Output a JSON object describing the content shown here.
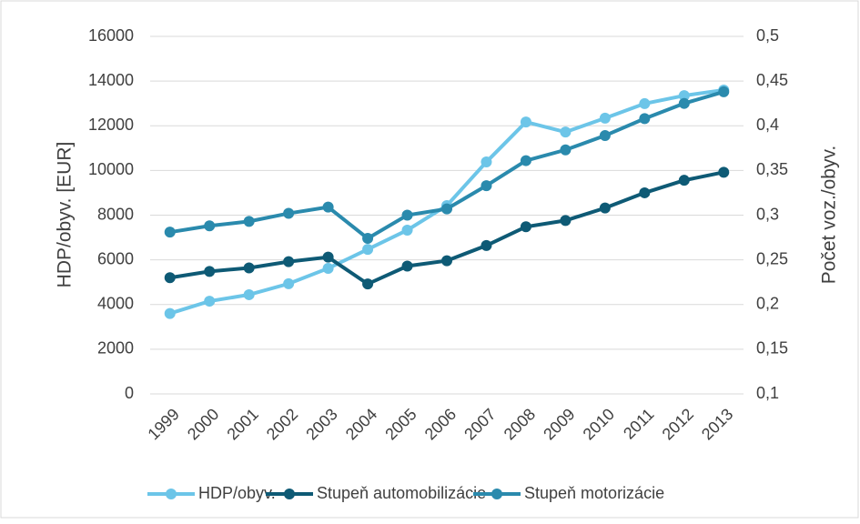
{
  "chart_data": {
    "type": "line",
    "categories": [
      "1999",
      "2000",
      "2001",
      "2002",
      "2003",
      "2004",
      "2005",
      "2006",
      "2007",
      "2008",
      "2009",
      "2010",
      "2011",
      "2012",
      "2013"
    ],
    "ylabel": "HDP/obyv. [EUR]",
    "y2label": "Počet voz./obyv.",
    "ylim": [
      0,
      16000
    ],
    "yticks": [
      0,
      2000,
      4000,
      6000,
      8000,
      10000,
      12000,
      14000,
      16000
    ],
    "y2lim": [
      0.1,
      0.5
    ],
    "y2ticks": [
      {
        "value": 0.1,
        "label": "0,1"
      },
      {
        "value": 0.15,
        "label": "0,15"
      },
      {
        "value": 0.2,
        "label": "0,2"
      },
      {
        "value": 0.25,
        "label": "0,25"
      },
      {
        "value": 0.3,
        "label": "0,3"
      },
      {
        "value": 0.35,
        "label": "0,35"
      },
      {
        "value": 0.4,
        "label": "0,4"
      },
      {
        "value": 0.45,
        "label": "0,45"
      },
      {
        "value": 0.5,
        "label": "0,5"
      }
    ],
    "grid": true,
    "legend": "bottom",
    "series": [
      {
        "name": "HDP/obyv.",
        "color": "#6cc5e8",
        "values": [
          3600,
          4150,
          4440,
          4930,
          5620,
          6470,
          7330,
          8430,
          10380,
          12170,
          11720,
          12340,
          12990,
          13350,
          13600
        ]
      },
      {
        "name": "Stupeň automobilizácie",
        "color": "#0e5a75",
        "axis": "y2",
        "values": [
          0.23,
          0.237,
          0.241,
          0.248,
          0.253,
          0.223,
          0.243,
          0.249,
          0.266,
          0.287,
          0.294,
          0.308,
          0.325,
          0.339,
          0.348
        ]
      },
      {
        "name": "Stupeň motorizácie",
        "color": "#2a8aad",
        "axis": "y2",
        "values": [
          0.281,
          0.288,
          0.293,
          0.302,
          0.309,
          0.274,
          0.3,
          0.307,
          0.333,
          0.361,
          0.373,
          0.389,
          0.408,
          0.425,
          0.438
        ]
      }
    ]
  }
}
